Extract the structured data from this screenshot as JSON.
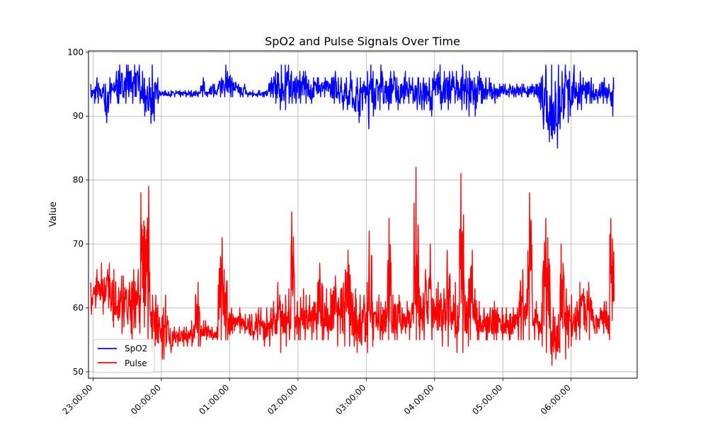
{
  "chart_data": {
    "type": "line",
    "title": "SpO2 and Pulse Signals Over Time",
    "xlabel": "",
    "ylabel": "Value",
    "xlim": [
      "22:56:00",
      "06:58:00"
    ],
    "ylim": [
      49,
      100.2
    ],
    "x_ticks": [
      "23:00:00",
      "00:00:00",
      "01:00:00",
      "02:00:00",
      "03:00:00",
      "04:00:00",
      "05:00:00",
      "06:00:00"
    ],
    "y_ticks": [
      50,
      60,
      70,
      80,
      90,
      100
    ],
    "grid": true,
    "legend_position": "lower-left",
    "series": [
      {
        "name": "SpO2",
        "color": "#0000ff",
        "x": [
          "22:58",
          "23:02",
          "23:06",
          "23:10",
          "23:14",
          "23:18",
          "23:22",
          "23:26",
          "23:30",
          "23:34",
          "23:38",
          "23:42",
          "23:46",
          "23:50",
          "23:54",
          "23:58",
          "00:02",
          "00:06",
          "00:10",
          "00:14",
          "00:18",
          "00:22",
          "00:26",
          "00:30",
          "00:34",
          "00:38",
          "00:42",
          "00:46",
          "00:50",
          "00:54",
          "00:58",
          "01:02",
          "01:06",
          "01:10",
          "01:14",
          "01:18",
          "01:22",
          "01:26",
          "01:30",
          "01:34",
          "01:38",
          "01:42",
          "01:46",
          "01:50",
          "01:54",
          "01:58",
          "02:02",
          "02:06",
          "02:10",
          "02:14",
          "02:18",
          "02:22",
          "02:26",
          "02:30",
          "02:34",
          "02:38",
          "02:42",
          "02:46",
          "02:50",
          "02:54",
          "02:58",
          "03:02",
          "03:06",
          "03:10",
          "03:14",
          "03:18",
          "03:22",
          "03:26",
          "03:30",
          "03:34",
          "03:38",
          "03:42",
          "03:46",
          "03:50",
          "03:54",
          "03:58",
          "04:02",
          "04:06",
          "04:10",
          "04:14",
          "04:18",
          "04:22",
          "04:26",
          "04:30",
          "04:34",
          "04:38",
          "04:42",
          "04:46",
          "04:50",
          "04:54",
          "04:58",
          "05:02",
          "05:06",
          "05:10",
          "05:14",
          "05:18",
          "05:22",
          "05:26",
          "05:30",
          "05:34",
          "05:38",
          "05:42",
          "05:46",
          "05:50",
          "05:54",
          "05:58",
          "06:02",
          "06:06",
          "06:10",
          "06:14",
          "06:18",
          "06:22",
          "06:26",
          "06:30",
          "06:34"
        ],
        "min": [
          92,
          92,
          92,
          89,
          92,
          92,
          92,
          92,
          93,
          92,
          92,
          90,
          89,
          87,
          92,
          93,
          93,
          93,
          93,
          93,
          93,
          93,
          93,
          93,
          93,
          93,
          93,
          93,
          93,
          93,
          93,
          93,
          93,
          93,
          93,
          93,
          93,
          93,
          93,
          93,
          92,
          91,
          91,
          92,
          92,
          92,
          92,
          92,
          92,
          93,
          93,
          93,
          93,
          92,
          92,
          91,
          91,
          90,
          89,
          90,
          92,
          88,
          90,
          91,
          91,
          91,
          92,
          91,
          92,
          92,
          92,
          91,
          91,
          91,
          90,
          91,
          92,
          91,
          91,
          92,
          91,
          91,
          91,
          90,
          90,
          92,
          92,
          92,
          92,
          92,
          93,
          93,
          93,
          93,
          93,
          93,
          93,
          93,
          91,
          88,
          86,
          84,
          85,
          88,
          89,
          90,
          91,
          91,
          92,
          92,
          92,
          92,
          92,
          92,
          90
        ],
        "max": [
          95,
          96,
          95,
          95,
          96,
          97,
          98,
          98,
          98,
          98,
          98,
          97,
          96,
          98,
          96,
          94,
          94,
          94,
          94,
          94,
          94,
          94,
          94,
          94,
          96,
          94,
          95,
          95,
          96,
          98,
          97,
          96,
          95,
          95,
          94,
          94,
          94,
          94,
          94,
          96,
          97,
          98,
          98,
          98,
          97,
          97,
          97,
          97,
          96,
          96,
          96,
          96,
          96,
          97,
          96,
          96,
          96,
          97,
          96,
          96,
          97,
          98,
          97,
          98,
          97,
          97,
          97,
          96,
          96,
          97,
          96,
          96,
          96,
          96,
          96,
          97,
          98,
          97,
          97,
          97,
          97,
          98,
          97,
          97,
          96,
          97,
          96,
          96,
          95,
          95,
          95,
          95,
          95,
          95,
          95,
          95,
          95,
          95,
          96,
          98,
          97,
          98,
          98,
          97,
          98,
          97,
          98,
          97,
          96,
          96,
          95,
          95,
          96,
          95,
          96
        ]
      },
      {
        "name": "Pulse",
        "color": "#ff0000",
        "x": [
          "22:58",
          "23:02",
          "23:06",
          "23:10",
          "23:14",
          "23:18",
          "23:22",
          "23:26",
          "23:30",
          "23:34",
          "23:38",
          "23:42",
          "23:46",
          "23:50",
          "23:54",
          "23:58",
          "00:02",
          "00:06",
          "00:10",
          "00:14",
          "00:18",
          "00:22",
          "00:26",
          "00:30",
          "00:34",
          "00:38",
          "00:42",
          "00:46",
          "00:50",
          "00:54",
          "00:58",
          "01:02",
          "01:06",
          "01:10",
          "01:14",
          "01:18",
          "01:22",
          "01:26",
          "01:30",
          "01:34",
          "01:38",
          "01:42",
          "01:46",
          "01:50",
          "01:54",
          "01:58",
          "02:02",
          "02:06",
          "02:10",
          "02:14",
          "02:18",
          "02:22",
          "02:26",
          "02:30",
          "02:34",
          "02:38",
          "02:42",
          "02:46",
          "02:50",
          "02:54",
          "02:58",
          "03:02",
          "03:06",
          "03:10",
          "03:14",
          "03:18",
          "03:22",
          "03:26",
          "03:30",
          "03:34",
          "03:38",
          "03:42",
          "03:46",
          "03:50",
          "03:54",
          "03:58",
          "04:02",
          "04:06",
          "04:10",
          "04:14",
          "04:18",
          "04:22",
          "04:26",
          "04:30",
          "04:34",
          "04:38",
          "04:42",
          "04:46",
          "04:50",
          "04:54",
          "04:58",
          "05:02",
          "05:06",
          "05:10",
          "05:14",
          "05:18",
          "05:22",
          "05:26",
          "05:30",
          "05:34",
          "05:38",
          "05:42",
          "05:46",
          "05:50",
          "05:54",
          "05:58",
          "06:02",
          "06:06",
          "06:10",
          "06:14",
          "06:18",
          "06:22",
          "06:26",
          "06:30",
          "06:34"
        ],
        "min": [
          59,
          60,
          59,
          60,
          58,
          57,
          56,
          57,
          56,
          55,
          56,
          57,
          55,
          53,
          52,
          52,
          52,
          53,
          54,
          54,
          54,
          54,
          54,
          54,
          54,
          55,
          55,
          55,
          55,
          55,
          55,
          56,
          56,
          56,
          56,
          55,
          55,
          55,
          54,
          54,
          54,
          53,
          54,
          55,
          55,
          55,
          55,
          55,
          55,
          55,
          55,
          55,
          55,
          54,
          54,
          54,
          54,
          54,
          53,
          52,
          53,
          54,
          55,
          55,
          55,
          55,
          55,
          55,
          56,
          56,
          55,
          55,
          55,
          55,
          55,
          55,
          55,
          54,
          54,
          54,
          53,
          53,
          54,
          55,
          55,
          55,
          55,
          55,
          55,
          55,
          55,
          55,
          55,
          55,
          55,
          55,
          55,
          55,
          55,
          54,
          53,
          51,
          52,
          53,
          52,
          54,
          55,
          55,
          55,
          55,
          56,
          56,
          56,
          55,
          58
        ],
        "max": [
          64,
          66,
          67,
          66,
          67,
          66,
          65,
          65,
          64,
          66,
          66,
          78,
          79,
          62,
          62,
          60,
          62,
          58,
          57,
          57,
          57,
          57,
          58,
          64,
          58,
          58,
          57,
          57,
          71,
          66,
          60,
          59,
          60,
          59,
          59,
          59,
          60,
          60,
          60,
          60,
          61,
          64,
          62,
          63,
          75,
          61,
          63,
          62,
          62,
          64,
          67,
          63,
          63,
          65,
          63,
          66,
          69,
          64,
          63,
          62,
          64,
          72,
          61,
          62,
          61,
          74,
          62,
          62,
          60,
          61,
          62,
          82,
          65,
          66,
          70,
          63,
          64,
          63,
          69,
          62,
          64,
          81,
          64,
          69,
          63,
          61,
          60,
          60,
          61,
          60,
          60,
          60,
          60,
          60,
          66,
          63,
          78,
          61,
          59,
          74,
          71,
          60,
          59,
          70,
          63,
          62,
          61,
          64,
          63,
          64,
          61,
          60,
          61,
          61,
          74
        ]
      }
    ]
  }
}
